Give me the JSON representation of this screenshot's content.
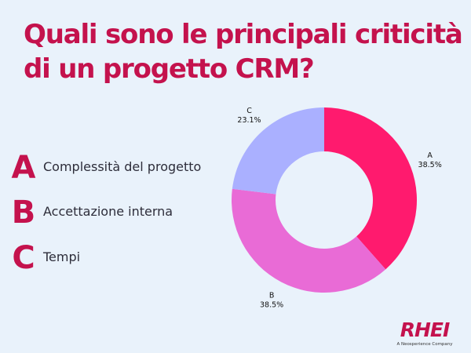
{
  "title": "Quali sono le principali criticità di un progetto CRM?",
  "legend": [
    {
      "letter": "A",
      "label": "Complessità del progetto"
    },
    {
      "letter": "B",
      "label": "Accettazione interna"
    },
    {
      "letter": "C",
      "label": "Tempi"
    }
  ],
  "brand": {
    "logo": "RHEI",
    "tagline": "A Neosperience Company"
  },
  "chart_data": {
    "type": "pie",
    "donut": true,
    "categories": [
      "A",
      "B",
      "C"
    ],
    "values": [
      38.5,
      38.5,
      23.1
    ],
    "value_labels": [
      "38.5%",
      "38.5%",
      "23.1%"
    ],
    "colors": [
      "#ff1a6e",
      "#e96bd6",
      "#aab0ff"
    ]
  }
}
